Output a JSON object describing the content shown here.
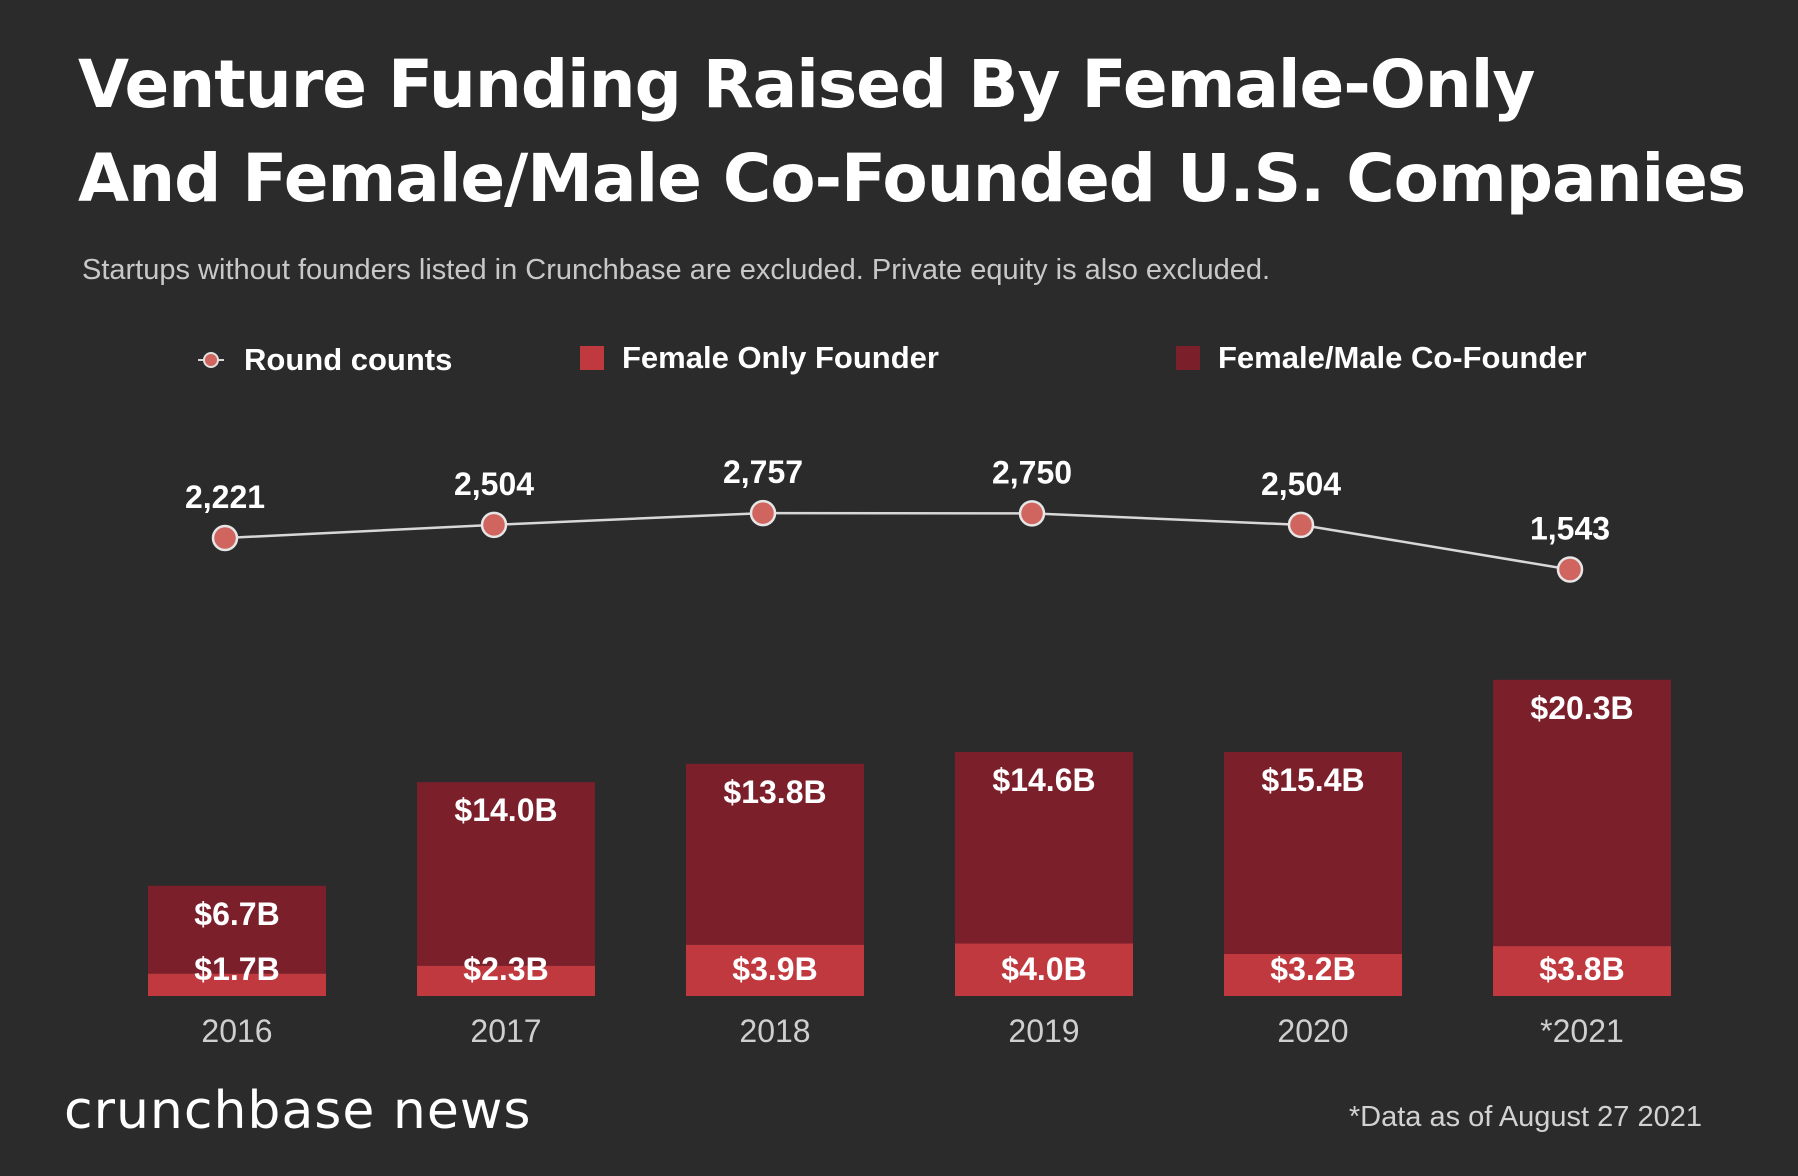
{
  "header": {
    "title_line1": "Venture Funding Raised By Female-Only",
    "title_line2": "And Female/Male Co-Founded U.S. Companies",
    "subtitle": "Startups without founders listed in Crunchbase are excluded. Private equity is also excluded."
  },
  "colors": {
    "background": "#2b2b2b",
    "female_only": "#c0393f",
    "cofounder": "#7b1f2b",
    "line": "#d8d8d8",
    "marker": "#d0655f"
  },
  "chart_data": {
    "type": "bar",
    "stacked": true,
    "categories": [
      "2016",
      "2017",
      "2018",
      "2019",
      "2020",
      "*2021"
    ],
    "legend": {
      "round_counts": "Round counts",
      "female_only": "Female Only Founder",
      "cofounder": "Female/Male Co-Founder"
    },
    "series": [
      {
        "name": "Female Only Founder",
        "values": [
          1.7,
          2.3,
          3.9,
          4.0,
          3.2,
          3.8
        ],
        "labels": [
          "$1.7B",
          "$2.3B",
          "$3.9B",
          "$4.0B",
          "$3.2B",
          "$3.8B"
        ]
      },
      {
        "name": "Female/Male Co-Founder",
        "values": [
          6.7,
          14.0,
          13.8,
          14.6,
          15.4,
          20.3
        ],
        "labels": [
          "$6.7B",
          "$14.0B",
          "$13.8B",
          "$14.6B",
          "$15.4B",
          "$20.3B"
        ]
      }
    ],
    "line_series": {
      "name": "Round counts",
      "values": [
        2221,
        2504,
        2757,
        2750,
        2504,
        1543
      ],
      "labels": [
        "2,221",
        "2,504",
        "2,757",
        "2,750",
        "2,504",
        "1,543"
      ]
    },
    "title": "Venture Funding Raised By Female-Only And Female/Male Co-Founded U.S. Companies",
    "unit": "USD billions"
  },
  "footer": {
    "brand": "crunchbase news",
    "note": "*Data as of August 27 2021"
  }
}
